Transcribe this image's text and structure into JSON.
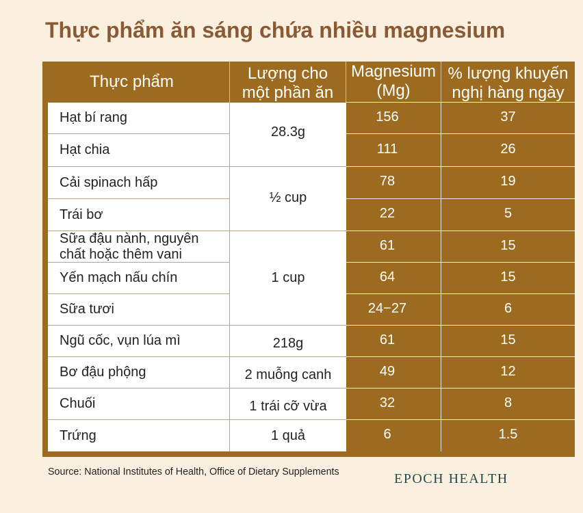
{
  "colors": {
    "background": "#FBF0DF",
    "title": "#8A5A34",
    "table_brown": "#9D6B1F",
    "logo": "#224A48"
  },
  "chart_data": {
    "type": "table",
    "title": "Thực phẩm ăn sáng chứa nhiều magnesium",
    "columns": [
      "Thực phẩm",
      "Lượng cho một phần ăn",
      "Magnesium (Mg)",
      "% lượng khuyến nghị hàng ngày"
    ],
    "groups": [
      {
        "serving": "28.3g",
        "items": [
          {
            "food": "Hạt bí rang",
            "magnesium_mg": 156,
            "daily_value_pct": 37
          },
          {
            "food": "Hạt chia",
            "magnesium_mg": 111,
            "daily_value_pct": 26
          }
        ]
      },
      {
        "serving": "½ cup",
        "items": [
          {
            "food": "Cải spinach hấp",
            "magnesium_mg": 78,
            "daily_value_pct": 19
          },
          {
            "food": "Trái bơ",
            "magnesium_mg": 22,
            "daily_value_pct": 5
          }
        ]
      },
      {
        "serving": "1 cup",
        "items": [
          {
            "food": "Sữa đậu nành, nguyên chất hoặc thêm vani",
            "magnesium_mg": 61,
            "daily_value_pct": 15
          },
          {
            "food": "Yến mạch nấu chín",
            "magnesium_mg": 64,
            "daily_value_pct": 15
          },
          {
            "food": "Sữa tươi",
            "magnesium_mg": "24−27",
            "daily_value_pct": 6
          }
        ]
      },
      {
        "serving": "218g",
        "items": [
          {
            "food": "Ngũ cốc, vụn lúa mì",
            "magnesium_mg": 61,
            "daily_value_pct": 15
          }
        ]
      },
      {
        "serving": "2 muỗng canh",
        "items": [
          {
            "food": "Bơ đậu phộng",
            "magnesium_mg": 49,
            "daily_value_pct": 12
          }
        ]
      },
      {
        "serving": "1 trái cỡ vừa",
        "items": [
          {
            "food": "Chuối",
            "magnesium_mg": 32,
            "daily_value_pct": 8
          }
        ]
      },
      {
        "serving": "1 quả",
        "items": [
          {
            "food": "Trứng",
            "magnesium_mg": 6,
            "daily_value_pct": 1.5
          }
        ]
      }
    ]
  },
  "source": "Source: National Institutes of Health, Office of Dietary Supplements",
  "logo_text": "EPOCH HEALTH"
}
